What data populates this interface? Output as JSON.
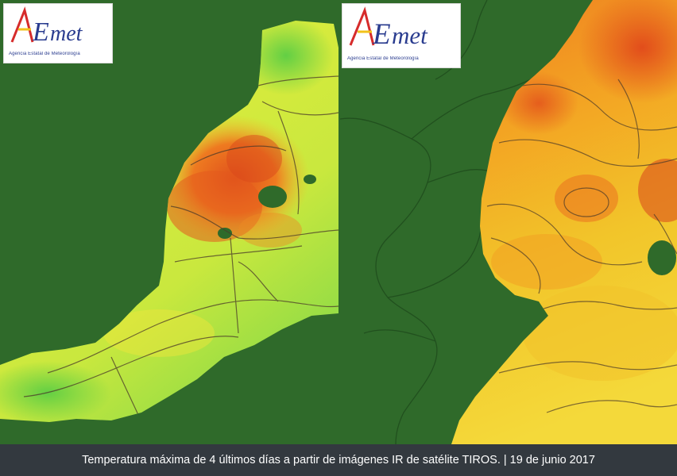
{
  "logo": {
    "wordmark": "AEmet",
    "agency": "Agencia Estatal de Meteorología"
  },
  "caption": "Temperatura máxima de 4 últimos días a partir de imágenes IR de satélite TIROS. | 19 de junio 2017",
  "palette": {
    "land_mask": "#2f6a2a",
    "cool": "#7fd94a",
    "mid": "#e6ef38",
    "warm": "#f4a21e",
    "hot": "#e0501c",
    "caption_bar": "#33393f",
    "logo_blue": "#2a3c8f",
    "logo_red": "#d62b2b",
    "logo_yellow": "#f2c21a"
  }
}
